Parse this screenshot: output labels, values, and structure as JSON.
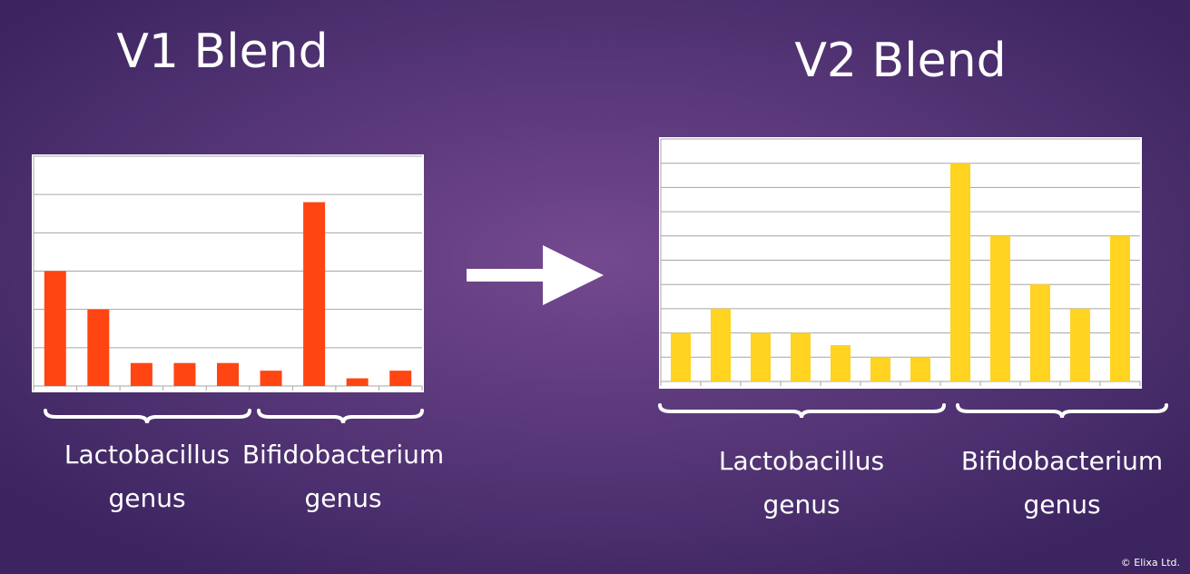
{
  "chart_data": [
    {
      "type": "bar",
      "title": "V1 Blend",
      "color": "#ff4512",
      "categories": [
        null,
        null,
        null,
        null,
        null,
        null,
        null,
        null,
        null
      ],
      "values": [
        3,
        2,
        0.6,
        0.6,
        0.6,
        0.4,
        4.8,
        0.2,
        0.4
      ],
      "ylim": [
        0,
        6
      ],
      "yticks": [
        0,
        1,
        2,
        3,
        4,
        5,
        6
      ],
      "grid": true,
      "groups": [
        {
          "label": [
            "Lactobacillus",
            "genus"
          ]
        },
        {
          "label": [
            "Bifidobacterium",
            "genus"
          ]
        }
      ]
    },
    {
      "type": "bar",
      "title": "V2 Blend",
      "color": "#ffd320",
      "categories": [
        null,
        null,
        null,
        null,
        null,
        null,
        null,
        null,
        null,
        null,
        null,
        null
      ],
      "values": [
        2,
        3,
        2,
        2,
        1.5,
        1,
        1,
        9,
        6,
        4,
        3,
        6
      ],
      "ylim": [
        0,
        10
      ],
      "yticks": [
        0,
        1,
        2,
        3,
        4,
        5,
        6,
        7,
        8,
        9,
        10
      ],
      "grid": true,
      "groups": [
        {
          "label": [
            "Lactobacillus",
            "genus"
          ]
        },
        {
          "label": [
            "Bifidobacterium",
            "genus"
          ]
        }
      ]
    }
  ],
  "footer": "© Elixa Ltd."
}
